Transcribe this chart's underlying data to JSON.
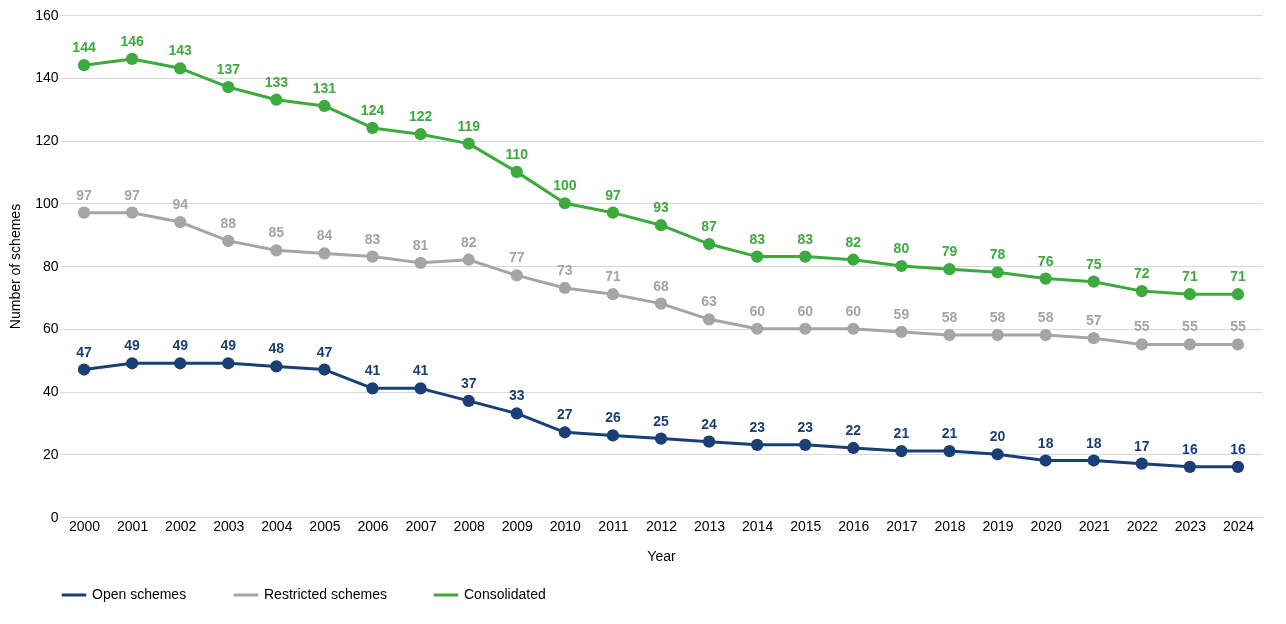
{
  "chart_data": {
    "type": "line",
    "xlabel": "Year",
    "ylabel": "Number of schemes",
    "categories": [
      "2000",
      "2001",
      "2002",
      "2003",
      "2004",
      "2005",
      "2006",
      "2007",
      "2008",
      "2009",
      "2010",
      "2011",
      "2012",
      "2013",
      "2014",
      "2015",
      "2016",
      "2017",
      "2018",
      "2019",
      "2020",
      "2021",
      "2022",
      "2023",
      "2024"
    ],
    "series": [
      {
        "name": "Open schemes",
        "color": "#1b3f73",
        "values": [
          47,
          49,
          49,
          49,
          48,
          47,
          41,
          41,
          37,
          33,
          27,
          26,
          25,
          24,
          23,
          23,
          22,
          21,
          21,
          20,
          18,
          18,
          17,
          16,
          16
        ]
      },
      {
        "name": "Restricted schemes",
        "color": "#a5a5a5",
        "values": [
          97,
          97,
          94,
          88,
          85,
          84,
          83,
          81,
          82,
          77,
          73,
          71,
          68,
          63,
          60,
          60,
          60,
          59,
          58,
          58,
          58,
          57,
          55,
          55,
          55
        ]
      },
      {
        "name": "Consolidated",
        "color": "#3daa3d",
        "values": [
          144,
          146,
          143,
          137,
          133,
          131,
          124,
          122,
          119,
          110,
          100,
          97,
          93,
          87,
          83,
          83,
          82,
          80,
          79,
          78,
          76,
          75,
          72,
          71,
          71
        ]
      }
    ],
    "ylim": [
      0,
      160
    ],
    "yticks": [
      0,
      20,
      40,
      60,
      80,
      100,
      120,
      140,
      160
    ],
    "grid": "y",
    "legend": "bottom left",
    "marker": "circle",
    "line_style": "solid",
    "data_labels": true
  }
}
